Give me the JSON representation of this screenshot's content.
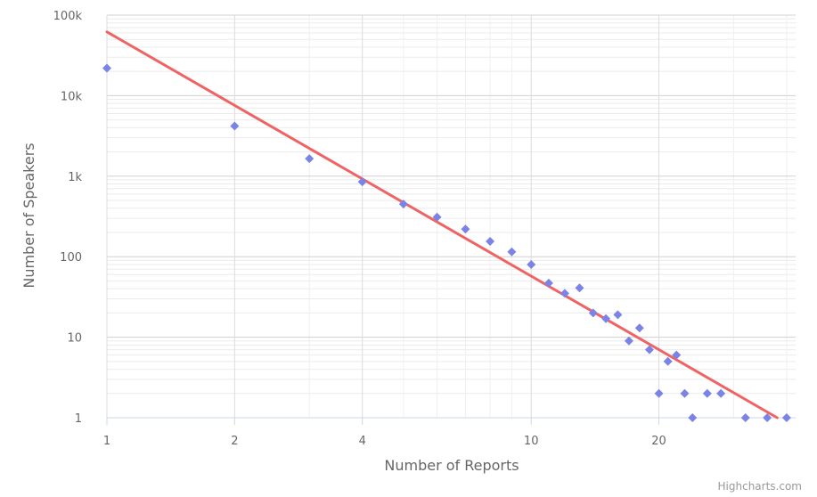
{
  "chart_data": {
    "type": "scatter",
    "title": "",
    "xlabel": "Number of Reports",
    "ylabel": "Number of Speakers",
    "x_scale": "log",
    "y_scale": "log",
    "xlim": [
      1,
      42
    ],
    "ylim": [
      1,
      100000
    ],
    "x_ticks": [
      {
        "value": 1,
        "label": "1"
      },
      {
        "value": 2,
        "label": "2"
      },
      {
        "value": 4,
        "label": "4"
      },
      {
        "value": 10,
        "label": "10"
      },
      {
        "value": 20,
        "label": "20"
      }
    ],
    "y_ticks": [
      {
        "value": 1,
        "label": "1"
      },
      {
        "value": 10,
        "label": "10"
      },
      {
        "value": 100,
        "label": "100"
      },
      {
        "value": 1000,
        "label": "1k"
      },
      {
        "value": 10000,
        "label": "10k"
      },
      {
        "value": 100000,
        "label": "100k"
      }
    ],
    "grid": true,
    "legend": "none",
    "series": [
      {
        "type": "scatter",
        "marker": "diamond",
        "color": "#7b84e6",
        "points": [
          [
            1,
            22000
          ],
          [
            2,
            4200
          ],
          [
            3,
            1650
          ],
          [
            4,
            850
          ],
          [
            5,
            450
          ],
          [
            6,
            310
          ],
          [
            7,
            220
          ],
          [
            8,
            155
          ],
          [
            9,
            115
          ],
          [
            10,
            80
          ],
          [
            11,
            47
          ],
          [
            12,
            35
          ],
          [
            13,
            41
          ],
          [
            14,
            20
          ],
          [
            15,
            17
          ],
          [
            16,
            19
          ],
          [
            17,
            9
          ],
          [
            18,
            13
          ],
          [
            19,
            7
          ],
          [
            20,
            2
          ],
          [
            21,
            5
          ],
          [
            22,
            6
          ],
          [
            23,
            2
          ],
          [
            24,
            1
          ],
          [
            26,
            2
          ],
          [
            28,
            2
          ],
          [
            32,
            1
          ],
          [
            36,
            1
          ],
          [
            40,
            1
          ]
        ]
      },
      {
        "type": "line",
        "color": "#ef6363",
        "points": [
          [
            1,
            62000
          ],
          [
            38,
            1
          ]
        ]
      }
    ]
  },
  "credits": "Highcharts.com"
}
